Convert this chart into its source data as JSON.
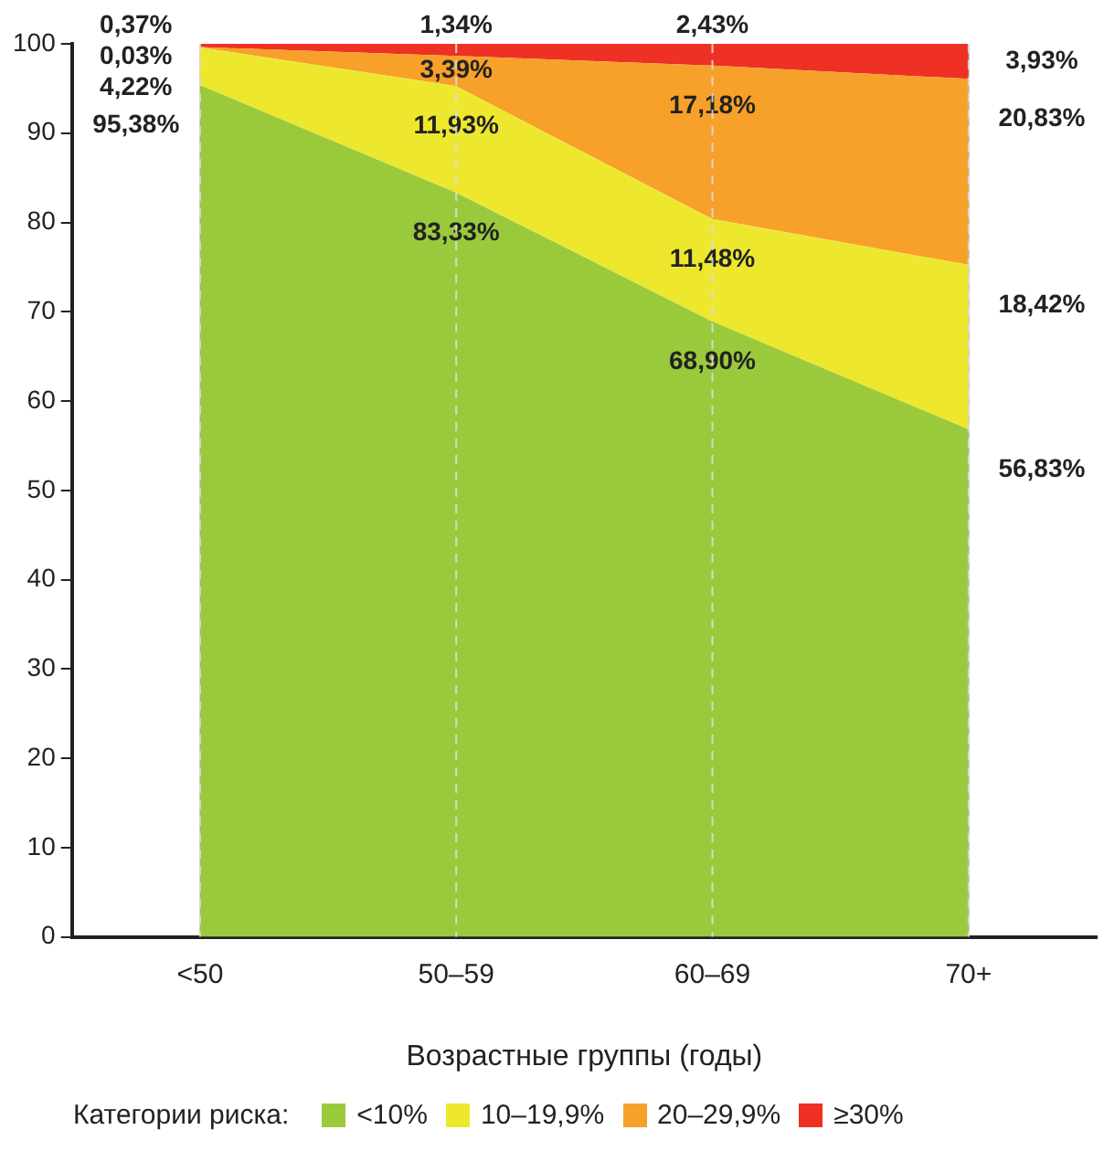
{
  "chart_data": {
    "type": "area",
    "stacked": true,
    "xlabel": "Возрастные группы (годы)",
    "legend_title": "Категории риска:",
    "legend": "bottom",
    "grid": "x",
    "categories": [
      "<50",
      "50–59",
      "60–69",
      "70+"
    ],
    "ylim": [
      0,
      100
    ],
    "yticks": [
      0,
      10,
      20,
      30,
      40,
      50,
      60,
      70,
      80,
      90,
      100
    ],
    "series": [
      {
        "name": "<10%",
        "color": "#9bc93c",
        "values": [
          95.38,
          83.33,
          68.9,
          56.83
        ],
        "value_labels": [
          "95,38%",
          "83,33%",
          "68,90%",
          "56,83%"
        ]
      },
      {
        "name": "10–19,9%",
        "color": "#ede82e",
        "values": [
          4.22,
          11.93,
          11.48,
          18.42
        ],
        "value_labels": [
          "4,22%",
          "11,93%",
          "11,48%",
          "18,42%"
        ]
      },
      {
        "name": "20–29,9%",
        "color": "#f7a12a",
        "values": [
          0.03,
          3.39,
          17.18,
          20.83
        ],
        "value_labels": [
          "0,03%",
          "3,39%",
          "17,18%",
          "20,83%"
        ]
      },
      {
        "name": "≥30%",
        "color": "#ee3124",
        "values": [
          0.37,
          1.34,
          2.43,
          3.93
        ],
        "value_labels": [
          "0,37%",
          "1,34%",
          "2,43%",
          "3,93%"
        ]
      }
    ]
  }
}
